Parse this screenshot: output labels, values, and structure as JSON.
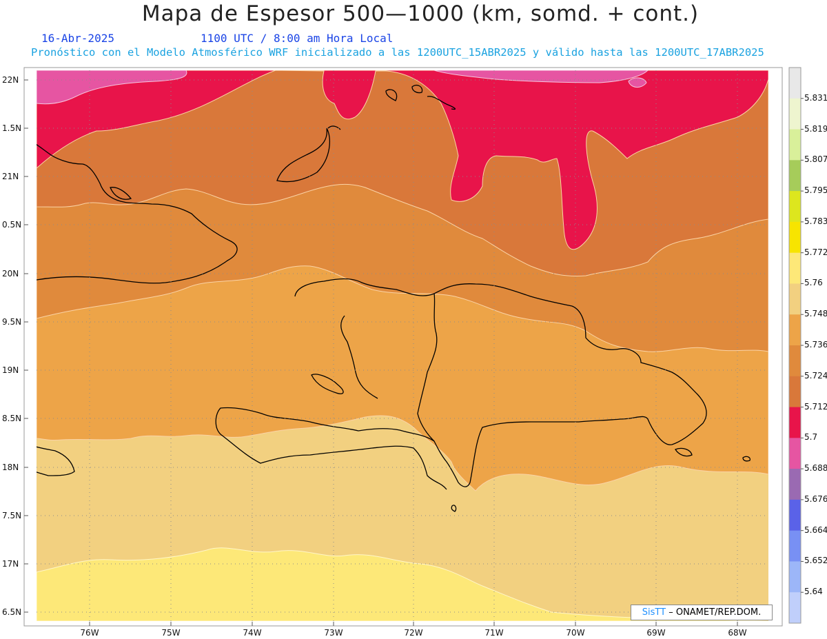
{
  "header": {
    "title": "Mapa de Espesor 500—1000 (km, somd. + cont.)",
    "date": "16-Abr-2025",
    "time": "1100 UTC / 8:00 am Hora Local",
    "model_line": "Pronóstico con el Modelo Atmosférico WRF inicializado a las 1200UTC_15ABR2025 y válido hasta las  1200UTC_17ABR2025"
  },
  "axes": {
    "lat_ticks": [
      "22N",
      "1.5N",
      "21N",
      "0.5N",
      "20N",
      "9.5N",
      "19N",
      "8.5N",
      "18N",
      "7.5N",
      "17N",
      "6.5N"
    ],
    "lon_ticks": [
      "76W",
      "75W",
      "74W",
      "73W",
      "72W",
      "71W",
      "70W",
      "69W",
      "68W"
    ]
  },
  "colorbar": {
    "levels": [
      "5.831",
      "5.819",
      "5.807",
      "5.795",
      "5.783",
      "5.772",
      "5.76",
      "5.748",
      "5.736",
      "5.724",
      "5.712",
      "5.7",
      "5.688",
      "5.676",
      "5.664",
      "5.652",
      "5.64"
    ],
    "colors": [
      "#e8e8e8",
      "#eef5cf",
      "#d9f09a",
      "#a6cc5a",
      "#dde61e",
      "#f7e400",
      "#fde878",
      "#f2d080",
      "#eda448",
      "#e08a3c",
      "#d9783a",
      "#e8144a",
      "#e655a2",
      "#9a6ab2",
      "#5a62e8",
      "#7890f4",
      "#9cb6f8",
      "#c0cffb"
    ]
  },
  "credit": {
    "sis": "SisTT",
    "text": "– ONAMET/REP.DOM."
  }
}
